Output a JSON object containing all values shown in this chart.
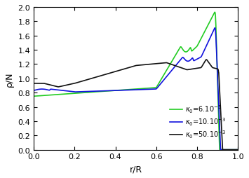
{
  "xlabel": "r/R",
  "ylabel": "ρ/N",
  "xlim": [
    0,
    1
  ],
  "ylim": [
    0,
    2
  ],
  "yticks": [
    0,
    0.2,
    0.4,
    0.6,
    0.8,
    1.0,
    1.2,
    1.4,
    1.6,
    1.8,
    2.0
  ],
  "xticks": [
    0,
    0.2,
    0.4,
    0.6,
    0.8,
    1.0
  ],
  "line_colors": [
    "#22cc22",
    "#1111dd",
    "#111111"
  ],
  "linewidth": 1.2
}
